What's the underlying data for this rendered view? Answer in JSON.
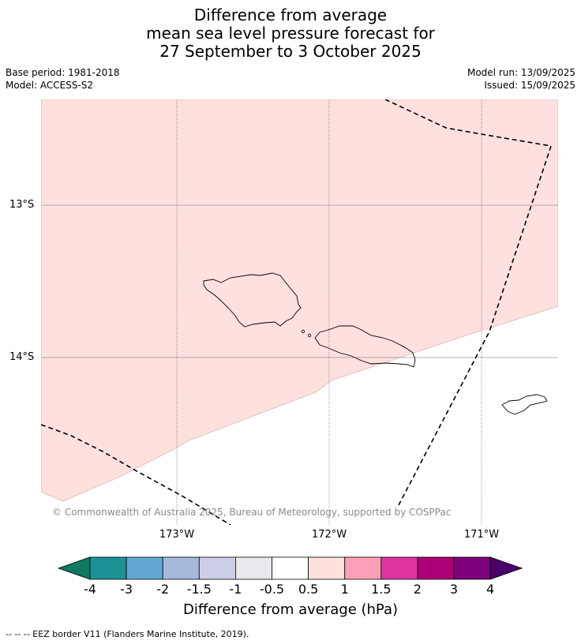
{
  "title": {
    "line1": "Difference from average",
    "line2": "mean sea level pressure forecast for",
    "line3": "27 September to 3 October 2025"
  },
  "meta": {
    "base_period": "Base period: 1981-2018",
    "model": "Model: ACCESS-S2",
    "model_run": "Model run: 13/09/2025",
    "issued": "Issued: 15/09/2025"
  },
  "map": {
    "latitudes": [
      "13°S",
      "14°S"
    ],
    "longitudes": [
      "173°W",
      "172°W",
      "171°W"
    ],
    "shaded_class": "0.5 to 1",
    "shaded_color": "#fee0df",
    "copyright": "© Commonwealth of Australia 2025, Bureau of Meteorology, supported by COSPPac"
  },
  "colorbar": {
    "title": "Difference from average (hPa)",
    "ticks": [
      "-4",
      "-3",
      "-2",
      "-1.5",
      "-1",
      "-0.5",
      "0.5",
      "1",
      "1.5",
      "2",
      "3",
      "4"
    ],
    "colors": [
      "#0f7a62",
      "#1b9196",
      "#63a8d3",
      "#a4b9dc",
      "#cccfe7",
      "#ebe8ee",
      "#ffffff",
      "#fee0df",
      "#f99fb8",
      "#dd34a0",
      "#ab0079",
      "#7b007a",
      "#4a006a"
    ]
  },
  "footnote": "--  --  -- EEZ border V11 (Flanders Marine Institute, 2019)."
}
